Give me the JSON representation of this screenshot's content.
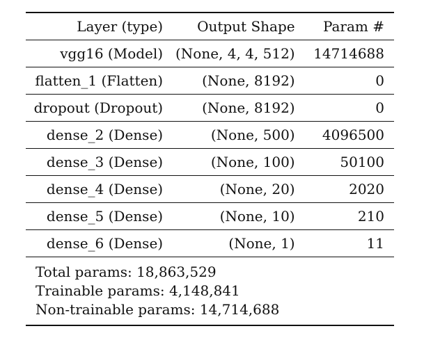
{
  "table": {
    "headers": [
      "Layer (type)",
      "Output Shape",
      "Param #"
    ],
    "rows": [
      [
        "vgg16 (Model)",
        "(None, 4, 4, 512)",
        "14714688"
      ],
      [
        "flatten_1 (Flatten)",
        "(None, 8192)",
        "0"
      ],
      [
        "dropout (Dropout)",
        "(None, 8192)",
        "0"
      ],
      [
        "dense_2 (Dense)",
        "(None, 500)",
        "4096500"
      ],
      [
        "dense_3 (Dense)",
        "(None, 100)",
        "50100"
      ],
      [
        "dense_4 (Dense)",
        "(None, 20)",
        "2020"
      ],
      [
        "dense_5 (Dense)",
        "(None, 10)",
        "210"
      ],
      [
        "dense_6 (Dense)",
        "(None, 1)",
        "11"
      ]
    ]
  },
  "summary": {
    "total": "Total params: 18,863,529",
    "trainable": "Trainable params: 4,148,841",
    "non_trainable": "Non-trainable params: 14,714,688"
  }
}
